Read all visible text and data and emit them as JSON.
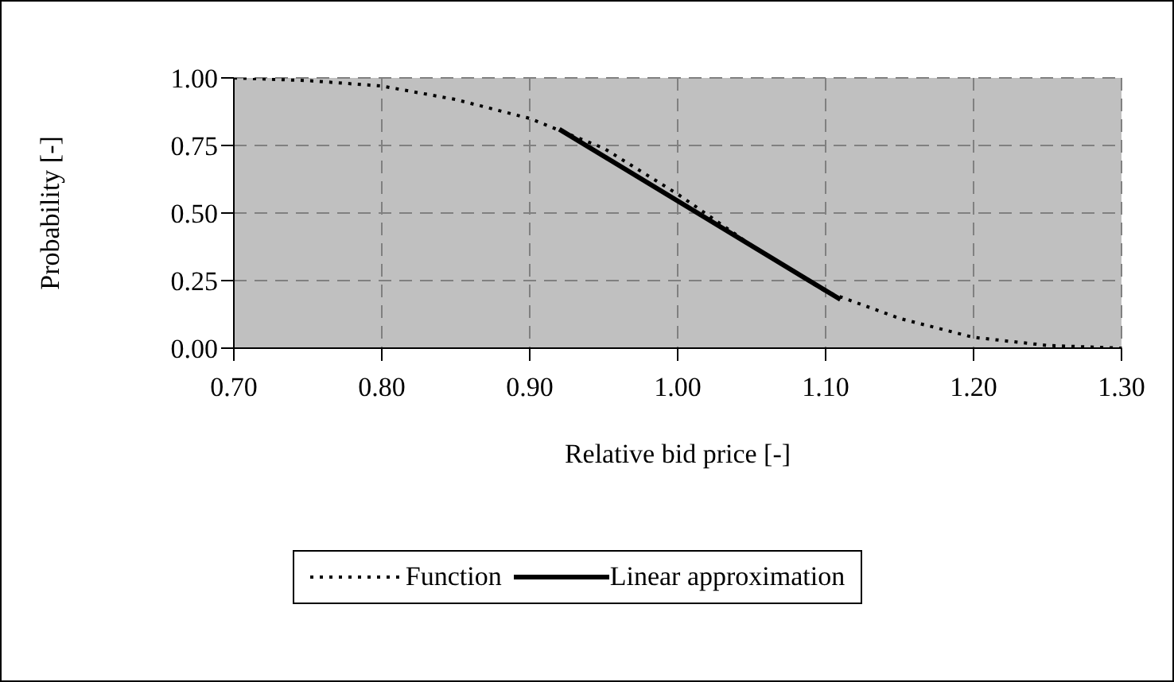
{
  "chart_data": {
    "type": "line",
    "xlabel": "Relative bid price [-]",
    "ylabel": "Probability [-]",
    "xlim": [
      0.7,
      1.3
    ],
    "ylim": [
      0,
      1
    ],
    "xticks": [
      {
        "value": 0.7,
        "label": "0.70"
      },
      {
        "value": 0.8,
        "label": "0.80"
      },
      {
        "value": 0.9,
        "label": "0.90"
      },
      {
        "value": 1.0,
        "label": "1.00"
      },
      {
        "value": 1.1,
        "label": "1.10"
      },
      {
        "value": 1.2,
        "label": "1.20"
      },
      {
        "value": 1.3,
        "label": "1.30"
      }
    ],
    "yticks": [
      {
        "value": 0,
        "label": "0.00"
      },
      {
        "value": 0.25,
        "label": "0.25"
      },
      {
        "value": 0.5,
        "label": "0.50"
      },
      {
        "value": 0.75,
        "label": "0.75"
      },
      {
        "value": 1,
        "label": "1.00"
      }
    ],
    "grid": true,
    "legend": "bottom",
    "series": [
      {
        "name": "Function",
        "color": "#000000",
        "line_style": "dotted",
        "x": [
          0.7,
          0.75,
          0.8,
          0.85,
          0.9,
          0.95,
          1.0,
          1.05,
          1.1,
          1.15,
          1.2,
          1.25,
          1.3
        ],
        "values": [
          1.0,
          0.99,
          0.97,
          0.92,
          0.85,
          0.74,
          0.57,
          0.38,
          0.21,
          0.11,
          0.04,
          0.01,
          0.0
        ]
      },
      {
        "name": "Linear approximation",
        "color": "#000000",
        "line_style": "solid",
        "x": [
          0.92,
          1.11
        ],
        "values": [
          0.81,
          0.18
        ]
      }
    ]
  }
}
